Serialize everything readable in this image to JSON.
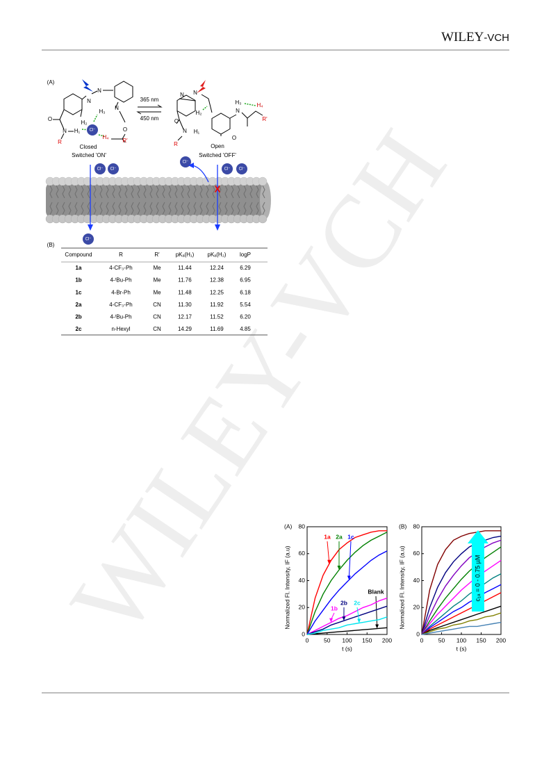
{
  "header": {
    "logo_main": "WILEY",
    "logo_suffix": "-VCH"
  },
  "watermark": "WILEY-VCH",
  "scheme": {
    "panel": "(A)",
    "light_forward": "365 nm",
    "light_back": "450 nm",
    "closed": "Closed",
    "closed_state": "Switched 'ON'",
    "open": "Open",
    "open_state": "Switched 'OFF'",
    "ion": "Cl⁻",
    "block_mark": "X",
    "atoms_left": [
      "N",
      "N",
      "N",
      "H₃",
      "H₂",
      "O",
      "O",
      "N",
      "H₁",
      "H₄",
      "R",
      "R'"
    ],
    "atoms_right": [
      "N",
      "N",
      "H₃",
      "H₄",
      "N",
      "O",
      "R'",
      "H₂",
      "O",
      "N",
      "H₁",
      "R"
    ]
  },
  "table": {
    "panel": "(B)",
    "header": [
      "Compound",
      "R",
      "R'",
      "pKₐ(H₁)",
      "pKₐ(H₂)",
      "logP"
    ],
    "rows": [
      [
        "1a",
        "4-CF₃-Ph",
        "Me",
        "11.44",
        "12.24",
        "6.29"
      ],
      [
        "1b",
        "4-ᵗBu-Ph",
        "Me",
        "11.76",
        "12.38",
        "6.95"
      ],
      [
        "1c",
        "4-Br-Ph",
        "Me",
        "11.48",
        "12.25",
        "6.18"
      ],
      [
        "2a",
        "4-CF₃-Ph",
        "CN",
        "11.30",
        "11.92",
        "5.54"
      ],
      [
        "2b",
        "4-ᵗBu-Ph",
        "CN",
        "12.17",
        "11.52",
        "6.20"
      ],
      [
        "2c",
        "n-Hexyl",
        "CN",
        "14.29",
        "11.69",
        "4.85"
      ]
    ]
  },
  "chart_data": [
    {
      "type": "line",
      "panel": "(A)",
      "xlabel": "t (s)",
      "ylabel": "Normalized Fl. Intensity, IF (a.u)",
      "xlim": [
        0,
        200
      ],
      "ylim": [
        0,
        80
      ],
      "xticks": [
        0,
        50,
        100,
        150,
        200
      ],
      "yticks": [
        0,
        20,
        40,
        60,
        80
      ],
      "x": [
        0,
        20,
        40,
        60,
        80,
        100,
        120,
        140,
        160,
        180,
        200
      ],
      "series": [
        {
          "name": "1a",
          "color": "#ff0000",
          "values": [
            0,
            27,
            44,
            55,
            63,
            68,
            72,
            74,
            76,
            77,
            77
          ]
        },
        {
          "name": "2a",
          "color": "#008000",
          "values": [
            0,
            17,
            30,
            40,
            48,
            55,
            61,
            66,
            70,
            73,
            76
          ]
        },
        {
          "name": "1c",
          "color": "#0000ff",
          "values": [
            0,
            10,
            18,
            26,
            33,
            39,
            45,
            50,
            55,
            59,
            62
          ]
        },
        {
          "name": "Blank",
          "color": "#000000",
          "values": [
            0,
            0.5,
            1,
            1.5,
            2,
            2.5,
            3,
            3.5,
            4,
            4.5,
            5
          ]
        },
        {
          "name": "1b",
          "color": "#ff00ff",
          "values": [
            0,
            3,
            6,
            9,
            12,
            14,
            17,
            20,
            22,
            25,
            27
          ]
        },
        {
          "name": "2b",
          "color": "#000080",
          "values": [
            0,
            2,
            4,
            7,
            9,
            11,
            13,
            15,
            17,
            19,
            21
          ]
        },
        {
          "name": "2c",
          "color": "#00e5ee",
          "values": [
            0,
            1,
            3,
            4,
            5,
            7,
            8,
            9,
            10,
            11,
            13
          ]
        }
      ]
    },
    {
      "type": "line",
      "panel": "(B)",
      "xlabel": "t (s)",
      "ylabel": "Normalized Fl. Intensity, IF (a.u)",
      "annotation": "c₁ₐ = 0 - 0.75 µM",
      "annotation_color": "#00ffff",
      "xlim": [
        0,
        200
      ],
      "ylim": [
        0,
        80
      ],
      "xticks": [
        0,
        50,
        100,
        150,
        200
      ],
      "yticks": [
        0,
        20,
        40,
        60,
        80
      ],
      "x": [
        0,
        20,
        40,
        60,
        80,
        100,
        120,
        140,
        160,
        180,
        200
      ],
      "series": [
        {
          "color": "#800000",
          "values": [
            0,
            33,
            52,
            63,
            70,
            73,
            75,
            76,
            77,
            77,
            77
          ]
        },
        {
          "color": "#000080",
          "values": [
            0,
            20,
            35,
            46,
            54,
            60,
            65,
            68,
            70,
            72,
            73
          ]
        },
        {
          "color": "#8000c0",
          "values": [
            0,
            14,
            26,
            36,
            44,
            51,
            57,
            61,
            65,
            68,
            70
          ]
        },
        {
          "color": "#008000",
          "values": [
            0,
            10,
            19,
            27,
            34,
            41,
            47,
            52,
            57,
            61,
            65
          ]
        },
        {
          "color": "#ff00ff",
          "values": [
            0,
            8,
            15,
            21,
            27,
            33,
            38,
            43,
            47,
            51,
            55
          ]
        },
        {
          "color": "#008080",
          "values": [
            0,
            6,
            11,
            16,
            21,
            25,
            30,
            34,
            38,
            42,
            45
          ]
        },
        {
          "color": "#0000ff",
          "values": [
            0,
            5,
            9,
            13,
            17,
            20,
            24,
            27,
            31,
            34,
            37
          ]
        },
        {
          "color": "#ff0000",
          "values": [
            0,
            4,
            7,
            10,
            13,
            16,
            19,
            22,
            25,
            28,
            31
          ]
        },
        {
          "color": "#000000",
          "values": [
            0,
            3,
            5,
            7,
            9,
            11,
            13,
            15,
            17,
            19,
            21
          ]
        },
        {
          "color": "#808000",
          "values": [
            0,
            2,
            4,
            5,
            7,
            8,
            10,
            11,
            13,
            14,
            16
          ]
        },
        {
          "color": "#4682b4",
          "values": [
            0,
            1,
            2,
            3,
            4,
            5,
            6,
            6,
            7,
            8,
            9
          ]
        }
      ]
    }
  ]
}
